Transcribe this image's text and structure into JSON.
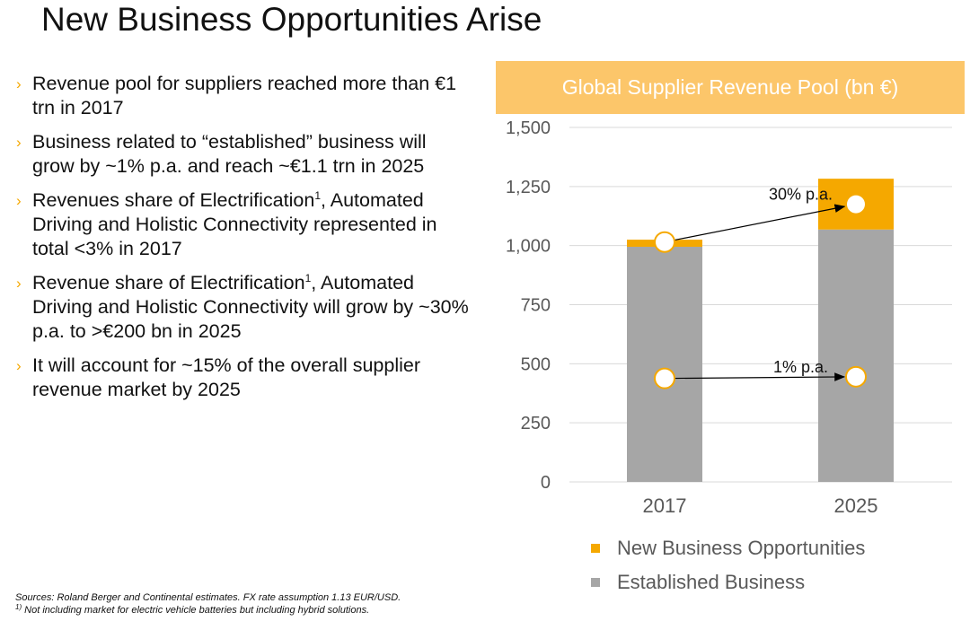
{
  "slide": {
    "title": "New Business Opportunities Arise"
  },
  "bullets": [
    {
      "parts": [
        "Revenue pool for suppliers reached more than €1 trn in 2017"
      ]
    },
    {
      "parts": [
        "Business related to “established” business will grow by ~1% p.a. and reach ~€1.1 trn in 2025"
      ]
    },
    {
      "parts": [
        "Revenues share of Electrification",
        "1",
        ", Automated Driving and Holistic Connectivity represented in total <3% in 2017"
      ]
    },
    {
      "parts": [
        "Revenue share of Electrification",
        "1",
        ", Automated Driving and Holistic Connectivity will grow by ~30% p.a. to >€200 bn in 2025"
      ]
    },
    {
      "parts": [
        "It will account for ~15% of the overall supplier revenue market by 2025"
      ]
    }
  ],
  "footnotes": {
    "sources": "Sources: Roland Berger and Continental estimates. FX rate assumption 1.13 EUR/USD.",
    "note_marker": "1)",
    "note_text": " Not including market for electric vehicle batteries but including hybrid solutions."
  },
  "chart_data": {
    "type": "bar",
    "stacked": true,
    "title": "Global Supplier Revenue Pool (bn €)",
    "categories": [
      "2017",
      "2025"
    ],
    "series": [
      {
        "name": "Established Business",
        "values": [
          995,
          1068
        ],
        "color": "#a6a6a6"
      },
      {
        "name": "New Business Opportunities",
        "values": [
          30,
          215
        ],
        "color": "#f5a800"
      }
    ],
    "ylim": [
      0,
      1500
    ],
    "yticks": [
      0,
      250,
      500,
      750,
      1000,
      1250,
      1500
    ],
    "ytick_labels": [
      "0",
      "250",
      "500",
      "750",
      "1,000",
      "1,250",
      "1,500"
    ],
    "grid": true,
    "legend": {
      "position": "bottom",
      "order": [
        "New Business Opportunities",
        "Established Business"
      ]
    },
    "annotations": [
      {
        "label": "30% p.a.",
        "from": {
          "x": "2017",
          "y": 1015
        },
        "to": {
          "x": "2025",
          "y": 1175
        }
      },
      {
        "label": "1% p.a.",
        "from": {
          "x": "2017",
          "y": 438
        },
        "to": {
          "x": "2025",
          "y": 445
        }
      }
    ],
    "colors": {
      "banner": "#fcc66a",
      "grid": "#d9d9d9",
      "axis_text": "#595959"
    }
  }
}
